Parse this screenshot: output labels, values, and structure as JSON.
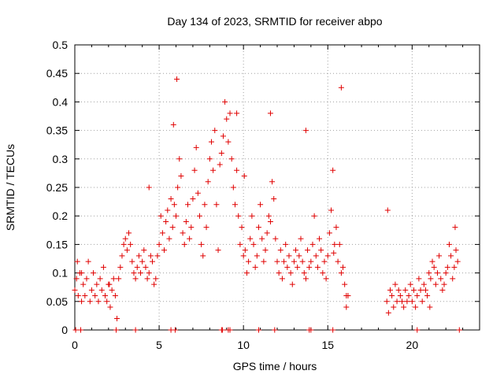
{
  "chart_data": {
    "type": "scatter",
    "title": "Day 134 of 2023, SRMTID for receiver abpo",
    "xlabel": "GPS time / hours",
    "ylabel": "SRMTID / TECUs",
    "xlim": [
      0,
      24
    ],
    "ylim": [
      0,
      0.5
    ],
    "x_ticks": [
      0,
      5,
      10,
      15,
      20
    ],
    "x_tick_labels": [
      "0",
      "5",
      "10",
      "15",
      "20"
    ],
    "y_ticks": [
      0,
      0.05,
      0.1,
      0.15,
      0.2,
      0.25,
      0.3,
      0.35,
      0.4,
      0.45,
      0.5
    ],
    "y_tick_labels": [
      "0",
      "0.05",
      "0.1",
      "0.15",
      "0.2",
      "0.25",
      "0.3",
      "0.35",
      "0.4",
      "0.45",
      "0.5"
    ],
    "grid": true,
    "marker": "plus",
    "color": "#e00000",
    "x": [
      0.0,
      0.1,
      0.2,
      0.3,
      0.4,
      0.5,
      0.6,
      0.7,
      0.8,
      0.9,
      1.0,
      1.1,
      1.2,
      1.3,
      1.4,
      1.5,
      1.6,
      1.7,
      1.8,
      1.9,
      2.0,
      2.1,
      2.2,
      2.3,
      2.4,
      2.6,
      2.7,
      2.8,
      2.9,
      3.0,
      3.1,
      3.2,
      3.3,
      3.4,
      3.5,
      3.6,
      3.7,
      3.8,
      3.9,
      4.0,
      4.1,
      4.2,
      4.3,
      4.4,
      4.5,
      4.6,
      4.7,
      4.8,
      4.9,
      5.0,
      5.1,
      5.2,
      5.3,
      5.4,
      5.5,
      5.6,
      5.7,
      5.8,
      5.9,
      6.0,
      6.1,
      6.2,
      6.3,
      6.4,
      6.5,
      6.6,
      6.7,
      6.8,
      6.9,
      7.0,
      7.1,
      7.2,
      7.3,
      7.4,
      7.5,
      7.6,
      7.7,
      7.8,
      7.9,
      8.0,
      8.1,
      8.2,
      8.3,
      8.4,
      8.5,
      8.6,
      8.7,
      8.8,
      8.9,
      9.0,
      9.1,
      9.2,
      9.3,
      9.4,
      9.5,
      9.6,
      9.7,
      9.8,
      9.9,
      10.0,
      10.1,
      10.2,
      10.3,
      10.4,
      10.5,
      10.6,
      10.7,
      10.8,
      10.9,
      11.0,
      11.1,
      11.2,
      11.3,
      11.4,
      11.5,
      11.6,
      11.7,
      11.8,
      11.9,
      12.0,
      12.1,
      12.2,
      12.3,
      12.4,
      12.5,
      12.6,
      12.7,
      12.8,
      12.9,
      13.0,
      13.1,
      13.2,
      13.3,
      13.4,
      13.5,
      13.6,
      13.7,
      13.8,
      13.9,
      14.0,
      14.1,
      14.2,
      14.3,
      14.4,
      14.5,
      14.6,
      14.7,
      14.8,
      14.9,
      15.0,
      15.1,
      15.2,
      15.3,
      15.4,
      15.5,
      15.6,
      15.7,
      15.8,
      15.9,
      16.0,
      16.1,
      16.2,
      18.5,
      18.6,
      18.7,
      18.8,
      18.9,
      19.0,
      19.1,
      19.2,
      19.3,
      19.4,
      19.5,
      19.6,
      19.7,
      19.8,
      19.9,
      20.0,
      20.1,
      20.2,
      20.3,
      20.4,
      20.5,
      20.6,
      20.7,
      20.8,
      20.9,
      21.0,
      21.1,
      21.2,
      21.3,
      21.4,
      21.5,
      21.6,
      21.7,
      21.8,
      21.9,
      22.0,
      22.1,
      22.2,
      22.3,
      22.4,
      22.5,
      22.6,
      22.7,
      22.8,
      0.05,
      0.35,
      2.45,
      3.6,
      5.7,
      5.95,
      8.7,
      8.75,
      9.1,
      9.2,
      10.9,
      11.85,
      13.9,
      14.0,
      15.3,
      15.35,
      0.15,
      0.4,
      2.05,
      2.5,
      4.4,
      5.85,
      6.05,
      9.6,
      10.05,
      11.6,
      13.7,
      15.8,
      16.1,
      18.55,
      20.3,
      21.05,
      22.55
    ],
    "y": [
      0.07,
      0.09,
      0.06,
      0.1,
      0.05,
      0.08,
      0.06,
      0.09,
      0.12,
      0.05,
      0.07,
      0.1,
      0.06,
      0.08,
      0.05,
      0.09,
      0.07,
      0.11,
      0.06,
      0.05,
      0.08,
      0.04,
      0.07,
      0.09,
      0.06,
      0.09,
      0.11,
      0.13,
      0.15,
      0.16,
      0.14,
      0.17,
      0.15,
      0.12,
      0.1,
      0.09,
      0.11,
      0.13,
      0.1,
      0.12,
      0.14,
      0.11,
      0.09,
      0.1,
      0.13,
      0.12,
      0.08,
      0.09,
      0.13,
      0.15,
      0.2,
      0.17,
      0.14,
      0.19,
      0.21,
      0.16,
      0.23,
      0.18,
      0.22,
      0.2,
      0.25,
      0.3,
      0.27,
      0.17,
      0.15,
      0.19,
      0.22,
      0.16,
      0.18,
      0.23,
      0.28,
      0.32,
      0.24,
      0.2,
      0.15,
      0.13,
      0.22,
      0.18,
      0.26,
      0.3,
      0.33,
      0.28,
      0.35,
      0.22,
      0.14,
      0.29,
      0.31,
      0.34,
      0.4,
      0.37,
      0.33,
      0.38,
      0.3,
      0.25,
      0.22,
      0.28,
      0.2,
      0.15,
      0.18,
      0.13,
      0.14,
      0.1,
      0.12,
      0.16,
      0.2,
      0.15,
      0.11,
      0.13,
      0.18,
      0.22,
      0.16,
      0.12,
      0.14,
      0.17,
      0.2,
      0.19,
      0.26,
      0.23,
      0.16,
      0.12,
      0.1,
      0.14,
      0.09,
      0.12,
      0.15,
      0.11,
      0.13,
      0.1,
      0.08,
      0.12,
      0.14,
      0.11,
      0.13,
      0.16,
      0.12,
      0.1,
      0.09,
      0.14,
      0.11,
      0.12,
      0.15,
      0.2,
      0.13,
      0.11,
      0.16,
      0.14,
      0.1,
      0.12,
      0.09,
      0.13,
      0.17,
      0.21,
      0.28,
      0.15,
      0.18,
      0.12,
      0.15,
      0.1,
      0.11,
      0.08,
      0.04,
      0.06,
      0.05,
      0.03,
      0.07,
      0.06,
      0.04,
      0.08,
      0.05,
      0.07,
      0.06,
      0.05,
      0.04,
      0.07,
      0.05,
      0.06,
      0.08,
      0.05,
      0.07,
      0.04,
      0.06,
      0.09,
      0.07,
      0.05,
      0.08,
      0.07,
      0.06,
      0.1,
      0.09,
      0.12,
      0.11,
      0.08,
      0.1,
      0.13,
      0.09,
      0.07,
      0.08,
      0.1,
      0.11,
      0.15,
      0.13,
      0.09,
      0.11,
      0.14,
      0.12,
      0.0,
      0.0,
      0.0,
      0.0,
      0.0,
      0.0,
      0.0,
      0.0,
      0.0,
      0.0,
      0.0,
      0.0,
      0.0,
      0.0,
      0.0,
      0.0,
      0.135,
      0.12,
      0.1,
      0.08,
      0.02,
      0.25,
      0.36,
      0.44,
      0.38,
      0.27,
      0.38,
      0.35,
      0.425,
      0.06,
      0.21,
      0.0,
      0.04,
      0.18
    ]
  }
}
